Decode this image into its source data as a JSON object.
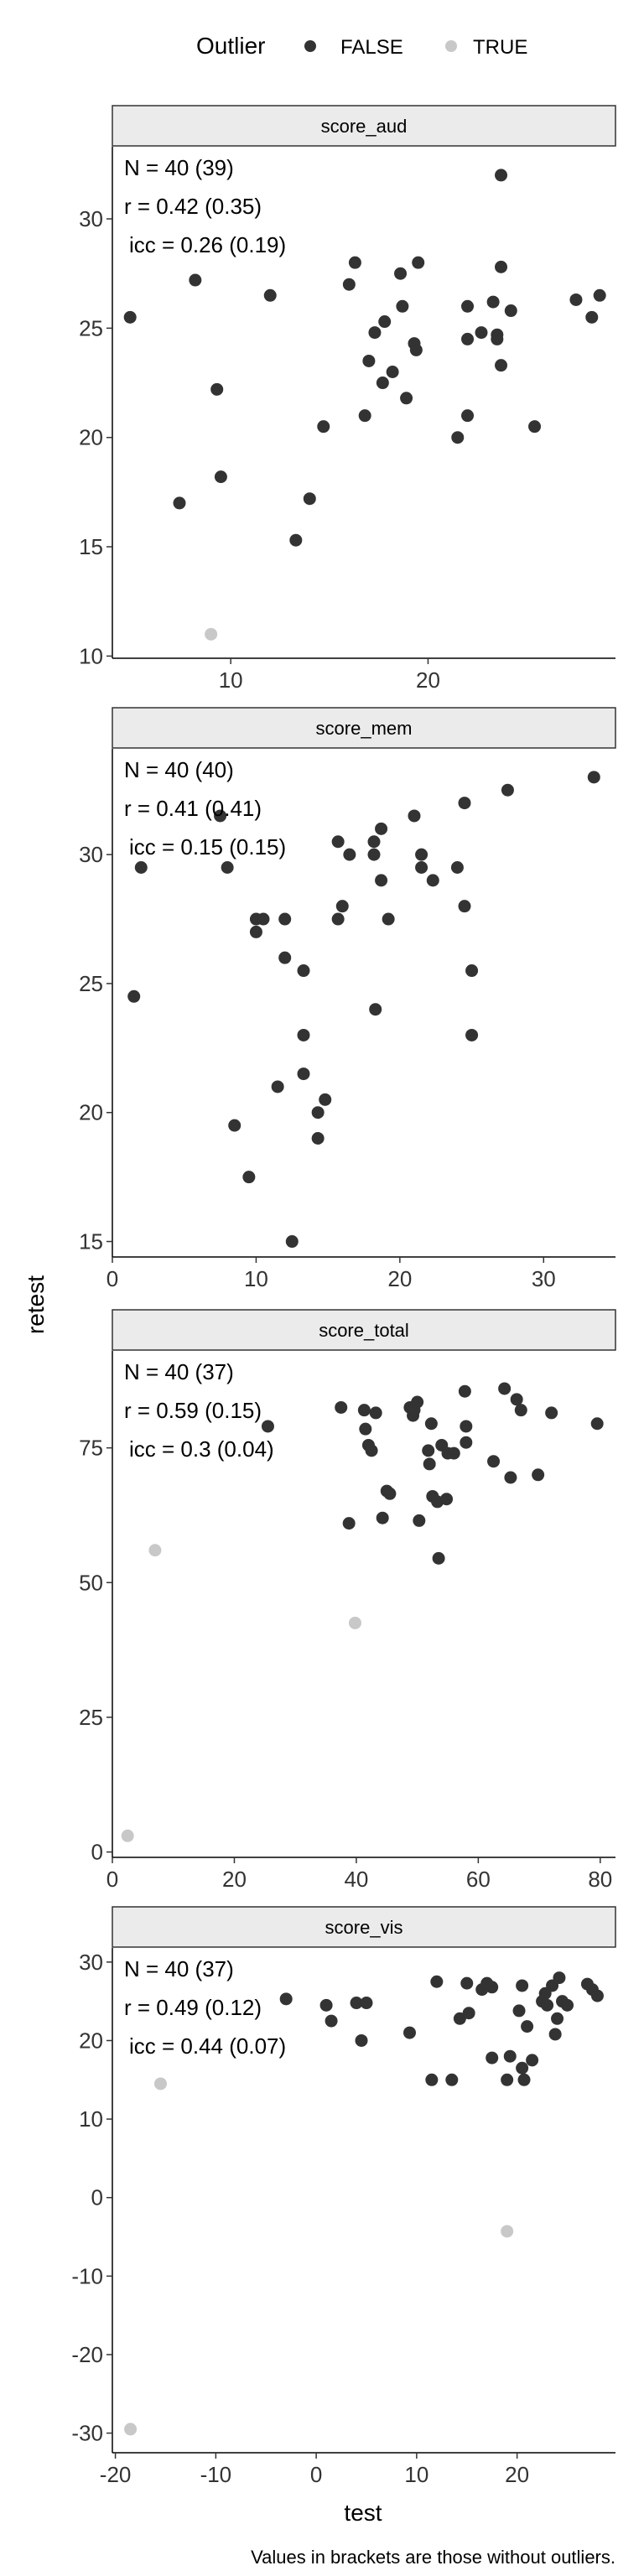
{
  "chart_data": {
    "type": "scatter",
    "xlabel": "test",
    "ylabel": "retest",
    "caption": "Values in brackets are those without outliers.",
    "legend": {
      "title": "Outlier",
      "placement": "top",
      "entries": [
        {
          "label": "FALSE",
          "color": "#333333"
        },
        {
          "label": "TRUE",
          "color": "#c8c8c8"
        }
      ]
    },
    "panels": [
      {
        "title": "score_aud",
        "xlim": [
          4,
          29.5
        ],
        "ylim": [
          9.9,
          33.3
        ],
        "xticks": [
          10,
          20
        ],
        "yticks": [
          10,
          15,
          20,
          25,
          30
        ],
        "stats": [
          "N = 40 (39)",
          "r = 0.42 (0.35)",
          "icc = 0.26 (0.19)"
        ],
        "points": [
          {
            "x": 8.2,
            "y": 27.2,
            "outlier": false
          },
          {
            "x": 9.3,
            "y": 22.2,
            "outlier": false
          },
          {
            "x": 9.5,
            "y": 18.2,
            "outlier": false
          },
          {
            "x": 7.4,
            "y": 17.0,
            "outlier": false
          },
          {
            "x": 4.9,
            "y": 25.5,
            "outlier": false
          },
          {
            "x": 12.0,
            "y": 26.5,
            "outlier": false
          },
          {
            "x": 13.3,
            "y": 15.3,
            "outlier": false
          },
          {
            "x": 14.0,
            "y": 17.2,
            "outlier": false
          },
          {
            "x": 14.7,
            "y": 20.5,
            "outlier": false
          },
          {
            "x": 16.0,
            "y": 27.0,
            "outlier": false
          },
          {
            "x": 16.3,
            "y": 28.0,
            "outlier": false
          },
          {
            "x": 16.8,
            "y": 21.0,
            "outlier": false
          },
          {
            "x": 17.0,
            "y": 23.5,
            "outlier": false
          },
          {
            "x": 17.3,
            "y": 24.8,
            "outlier": false
          },
          {
            "x": 17.7,
            "y": 22.5,
            "outlier": false
          },
          {
            "x": 17.8,
            "y": 25.3,
            "outlier": false
          },
          {
            "x": 18.2,
            "y": 23.0,
            "outlier": false
          },
          {
            "x": 18.6,
            "y": 27.5,
            "outlier": false
          },
          {
            "x": 18.7,
            "y": 26.0,
            "outlier": false
          },
          {
            "x": 18.9,
            "y": 21.8,
            "outlier": false
          },
          {
            "x": 19.3,
            "y": 24.3,
            "outlier": false
          },
          {
            "x": 19.5,
            "y": 28.0,
            "outlier": false
          },
          {
            "x": 19.4,
            "y": 24.0,
            "outlier": false
          },
          {
            "x": 21.5,
            "y": 20.0,
            "outlier": false
          },
          {
            "x": 22.0,
            "y": 26.0,
            "outlier": false
          },
          {
            "x": 22.0,
            "y": 24.5,
            "outlier": false
          },
          {
            "x": 22.0,
            "y": 21.0,
            "outlier": false
          },
          {
            "x": 22.7,
            "y": 24.8,
            "outlier": false
          },
          {
            "x": 23.3,
            "y": 26.2,
            "outlier": false
          },
          {
            "x": 23.5,
            "y": 24.7,
            "outlier": false
          },
          {
            "x": 23.5,
            "y": 24.5,
            "outlier": false
          },
          {
            "x": 23.7,
            "y": 32.0,
            "outlier": false
          },
          {
            "x": 23.7,
            "y": 27.8,
            "outlier": false
          },
          {
            "x": 23.7,
            "y": 23.3,
            "outlier": false
          },
          {
            "x": 24.2,
            "y": 25.8,
            "outlier": false
          },
          {
            "x": 25.4,
            "y": 20.5,
            "outlier": false
          },
          {
            "x": 27.5,
            "y": 26.3,
            "outlier": false
          },
          {
            "x": 28.3,
            "y": 25.5,
            "outlier": false
          },
          {
            "x": 28.7,
            "y": 26.5,
            "outlier": false
          },
          {
            "x": 9.0,
            "y": 11.0,
            "outlier": true
          }
        ]
      },
      {
        "title": "score_mem",
        "xlim": [
          0,
          35
        ],
        "ylim": [
          14.4,
          34.1
        ],
        "xticks": [
          0,
          10,
          20,
          30
        ],
        "yticks": [
          15,
          20,
          25,
          30
        ],
        "stats": [
          "N = 40 (40)",
          "r = 0.41 (0.41)",
          "icc = 0.15 (0.15)"
        ],
        "points": [
          {
            "x": 1.5,
            "y": 24.5,
            "outlier": false
          },
          {
            "x": 2.0,
            "y": 29.5,
            "outlier": false
          },
          {
            "x": 7.5,
            "y": 31.5,
            "outlier": false
          },
          {
            "x": 8.0,
            "y": 29.5,
            "outlier": false
          },
          {
            "x": 8.5,
            "y": 19.5,
            "outlier": false
          },
          {
            "x": 9.5,
            "y": 17.5,
            "outlier": false
          },
          {
            "x": 10.0,
            "y": 27.0,
            "outlier": false
          },
          {
            "x": 10.5,
            "y": 27.5,
            "outlier": false
          },
          {
            "x": 11.5,
            "y": 21.0,
            "outlier": false
          },
          {
            "x": 12.0,
            "y": 26.0,
            "outlier": false
          },
          {
            "x": 12.0,
            "y": 27.5,
            "outlier": false
          },
          {
            "x": 12.5,
            "y": 15.0,
            "outlier": false
          },
          {
            "x": 13.3,
            "y": 25.5,
            "outlier": false
          },
          {
            "x": 13.3,
            "y": 23.0,
            "outlier": false
          },
          {
            "x": 13.3,
            "y": 21.5,
            "outlier": false
          },
          {
            "x": 14.3,
            "y": 19.0,
            "outlier": false
          },
          {
            "x": 14.3,
            "y": 20.0,
            "outlier": false
          },
          {
            "x": 14.8,
            "y": 20.5,
            "outlier": false
          },
          {
            "x": 15.7,
            "y": 27.5,
            "outlier": false
          },
          {
            "x": 15.7,
            "y": 30.5,
            "outlier": false
          },
          {
            "x": 16.0,
            "y": 28.0,
            "outlier": false
          },
          {
            "x": 16.5,
            "y": 30.0,
            "outlier": false
          },
          {
            "x": 18.2,
            "y": 30.5,
            "outlier": false
          },
          {
            "x": 18.2,
            "y": 30.0,
            "outlier": false
          },
          {
            "x": 18.3,
            "y": 24.0,
            "outlier": false
          },
          {
            "x": 18.7,
            "y": 31.0,
            "outlier": false
          },
          {
            "x": 18.7,
            "y": 29.0,
            "outlier": false
          },
          {
            "x": 19.2,
            "y": 27.5,
            "outlier": false
          },
          {
            "x": 21.0,
            "y": 31.5,
            "outlier": false
          },
          {
            "x": 21.5,
            "y": 30.0,
            "outlier": false
          },
          {
            "x": 21.5,
            "y": 29.5,
            "outlier": false
          },
          {
            "x": 22.3,
            "y": 29.0,
            "outlier": false
          },
          {
            "x": 24.0,
            "y": 29.5,
            "outlier": false
          },
          {
            "x": 24.5,
            "y": 32.0,
            "outlier": false
          },
          {
            "x": 24.5,
            "y": 28.0,
            "outlier": false
          },
          {
            "x": 25.0,
            "y": 25.5,
            "outlier": false
          },
          {
            "x": 25.0,
            "y": 23.0,
            "outlier": false
          },
          {
            "x": 27.5,
            "y": 32.5,
            "outlier": false
          },
          {
            "x": 33.5,
            "y": 33.0,
            "outlier": false
          },
          {
            "x": 10.0,
            "y": 27.5,
            "outlier": false
          }
        ]
      },
      {
        "title": "score_total",
        "xlim": [
          0,
          82.5
        ],
        "ylim": [
          -1,
          93
        ],
        "xticks": [
          0,
          20,
          40,
          60,
          80
        ],
        "yticks": [
          0,
          25,
          50,
          75
        ],
        "stats": [
          "N = 40 (37)",
          "r = 0.59 (0.15)",
          "icc = 0.3 (0.04)"
        ],
        "points": [
          {
            "x": 25.5,
            "y": 79,
            "outlier": false
          },
          {
            "x": 37.5,
            "y": 82.5,
            "outlier": false
          },
          {
            "x": 38.8,
            "y": 61,
            "outlier": false
          },
          {
            "x": 41.3,
            "y": 82,
            "outlier": false
          },
          {
            "x": 41.5,
            "y": 78.5,
            "outlier": false
          },
          {
            "x": 42.0,
            "y": 75.5,
            "outlier": false
          },
          {
            "x": 42.5,
            "y": 74.5,
            "outlier": false
          },
          {
            "x": 43.2,
            "y": 81.5,
            "outlier": false
          },
          {
            "x": 44.3,
            "y": 62,
            "outlier": false
          },
          {
            "x": 45.0,
            "y": 67,
            "outlier": false
          },
          {
            "x": 45.5,
            "y": 66.5,
            "outlier": false
          },
          {
            "x": 48.8,
            "y": 82.5,
            "outlier": false
          },
          {
            "x": 49.3,
            "y": 81,
            "outlier": false
          },
          {
            "x": 50.0,
            "y": 83.5,
            "outlier": false
          },
          {
            "x": 50.3,
            "y": 61.5,
            "outlier": false
          },
          {
            "x": 51.8,
            "y": 74.5,
            "outlier": false
          },
          {
            "x": 52.0,
            "y": 72,
            "outlier": false
          },
          {
            "x": 52.3,
            "y": 79.5,
            "outlier": false
          },
          {
            "x": 52.5,
            "y": 66,
            "outlier": false
          },
          {
            "x": 53.3,
            "y": 65,
            "outlier": false
          },
          {
            "x": 53.5,
            "y": 54.5,
            "outlier": false
          },
          {
            "x": 54.0,
            "y": 75.5,
            "outlier": false
          },
          {
            "x": 54.8,
            "y": 65.5,
            "outlier": false
          },
          {
            "x": 55.0,
            "y": 74,
            "outlier": false
          },
          {
            "x": 56.0,
            "y": 74,
            "outlier": false
          },
          {
            "x": 57.8,
            "y": 85.5,
            "outlier": false
          },
          {
            "x": 58.0,
            "y": 79,
            "outlier": false
          },
          {
            "x": 58.0,
            "y": 76,
            "outlier": false
          },
          {
            "x": 62.5,
            "y": 72.5,
            "outlier": false
          },
          {
            "x": 64.3,
            "y": 86,
            "outlier": false
          },
          {
            "x": 65.3,
            "y": 69.5,
            "outlier": false
          },
          {
            "x": 66.3,
            "y": 84,
            "outlier": false
          },
          {
            "x": 67.0,
            "y": 82,
            "outlier": false
          },
          {
            "x": 69.8,
            "y": 70,
            "outlier": false
          },
          {
            "x": 72.0,
            "y": 81.5,
            "outlier": false
          },
          {
            "x": 79.5,
            "y": 79.5,
            "outlier": false
          },
          {
            "x": 49.5,
            "y": 82,
            "outlier": false
          },
          {
            "x": 2.5,
            "y": 3,
            "outlier": true
          },
          {
            "x": 7.0,
            "y": 56,
            "outlier": true
          },
          {
            "x": 39.8,
            "y": 42.5,
            "outlier": true
          }
        ]
      },
      {
        "title": "score_vis",
        "xlim": [
          -20.3,
          29.8
        ],
        "ylim": [
          -32.5,
          31.8
        ],
        "xticks": [
          -20,
          -10,
          0,
          10,
          20
        ],
        "yticks": [
          -30,
          -20,
          -10,
          0,
          10,
          20,
          30
        ],
        "stats": [
          "N = 40 (37)",
          "r = 0.49 (0.12)",
          "icc = 0.44 (0.07)"
        ],
        "points": [
          {
            "x": -3.0,
            "y": 25.3,
            "outlier": false
          },
          {
            "x": 1.0,
            "y": 24.5,
            "outlier": false
          },
          {
            "x": 1.5,
            "y": 22.5,
            "outlier": false
          },
          {
            "x": 4.0,
            "y": 24.8,
            "outlier": false
          },
          {
            "x": 4.5,
            "y": 20.0,
            "outlier": false
          },
          {
            "x": 5.0,
            "y": 24.8,
            "outlier": false
          },
          {
            "x": 9.3,
            "y": 21.0,
            "outlier": false
          },
          {
            "x": 11.5,
            "y": 15.0,
            "outlier": false
          },
          {
            "x": 12.0,
            "y": 27.5,
            "outlier": false
          },
          {
            "x": 13.5,
            "y": 15.0,
            "outlier": false
          },
          {
            "x": 14.3,
            "y": 22.8,
            "outlier": false
          },
          {
            "x": 15.0,
            "y": 27.3,
            "outlier": false
          },
          {
            "x": 15.2,
            "y": 23.5,
            "outlier": false
          },
          {
            "x": 16.5,
            "y": 26.5,
            "outlier": false
          },
          {
            "x": 17.0,
            "y": 27.3,
            "outlier": false
          },
          {
            "x": 17.5,
            "y": 26.8,
            "outlier": false
          },
          {
            "x": 17.5,
            "y": 17.8,
            "outlier": false
          },
          {
            "x": 19.0,
            "y": 15.0,
            "outlier": false
          },
          {
            "x": 19.3,
            "y": 18.0,
            "outlier": false
          },
          {
            "x": 20.2,
            "y": 23.8,
            "outlier": false
          },
          {
            "x": 20.5,
            "y": 27.0,
            "outlier": false
          },
          {
            "x": 20.5,
            "y": 16.5,
            "outlier": false
          },
          {
            "x": 20.7,
            "y": 15.0,
            "outlier": false
          },
          {
            "x": 21.5,
            "y": 17.5,
            "outlier": false
          },
          {
            "x": 22.5,
            "y": 25.0,
            "outlier": false
          },
          {
            "x": 22.8,
            "y": 26.0,
            "outlier": false
          },
          {
            "x": 23.0,
            "y": 24.5,
            "outlier": false
          },
          {
            "x": 23.5,
            "y": 27.0,
            "outlier": false
          },
          {
            "x": 23.8,
            "y": 20.8,
            "outlier": false
          },
          {
            "x": 24.0,
            "y": 22.8,
            "outlier": false
          },
          {
            "x": 24.2,
            "y": 28.0,
            "outlier": false
          },
          {
            "x": 24.5,
            "y": 25.0,
            "outlier": false
          },
          {
            "x": 25.0,
            "y": 24.5,
            "outlier": false
          },
          {
            "x": 27.0,
            "y": 27.2,
            "outlier": false
          },
          {
            "x": 27.5,
            "y": 26.5,
            "outlier": false
          },
          {
            "x": 28.0,
            "y": 25.7,
            "outlier": false
          },
          {
            "x": 21.0,
            "y": 21.8,
            "outlier": false
          },
          {
            "x": -18.5,
            "y": -29.5,
            "outlier": true
          },
          {
            "x": -15.5,
            "y": 14.5,
            "outlier": true
          },
          {
            "x": 19.0,
            "y": -4.3,
            "outlier": true
          }
        ]
      }
    ]
  }
}
